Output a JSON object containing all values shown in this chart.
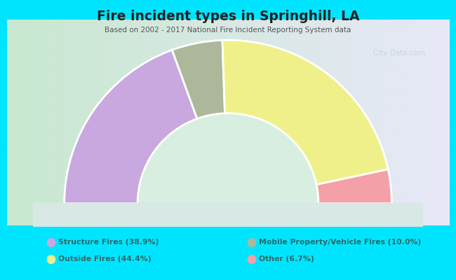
{
  "title": "Fire incident types in Springhill, LA",
  "subtitle": "Based on 2002 - 2017 National Fire Incident Reporting System data",
  "segments": [
    {
      "label": "Structure Fires (38.9%)",
      "value": 38.9,
      "color": "#c9a8e0"
    },
    {
      "label": "Mobile Property/Vehicle Fires (10.0%)",
      "value": 10.0,
      "color": "#adb89a"
    },
    {
      "label": "Outside Fires (44.4%)",
      "value": 44.4,
      "color": "#f0f08a"
    },
    {
      "label": "Other (6.7%)",
      "value": 6.7,
      "color": "#f4a0a8"
    }
  ],
  "draw_order_indices": [
    0,
    1,
    2,
    3
  ],
  "legend_rows": [
    [
      0,
      1
    ],
    [
      2,
      3
    ]
  ],
  "bg_outer": "#00e5ff",
  "chart_bg_left": "#c8e8d0",
  "chart_bg_right": "#e8e8f8",
  "watermark": "  City-Data.com",
  "legend_text_color": "#336666",
  "title_color": "#222222",
  "subtitle_color": "#555555"
}
